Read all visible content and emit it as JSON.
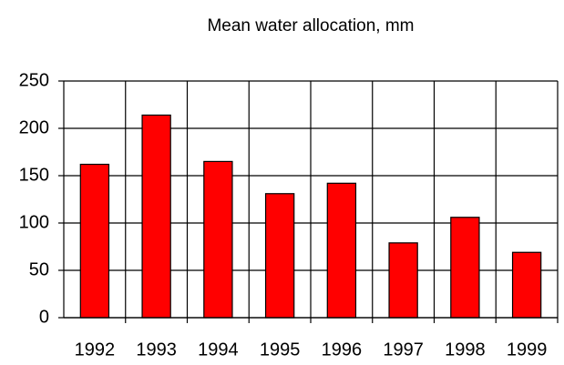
{
  "chart_data": {
    "type": "bar",
    "title": "Mean water allocation, mm",
    "categories": [
      "1992",
      "1993",
      "1994",
      "1995",
      "1996",
      "1997",
      "1998",
      "1999"
    ],
    "values": [
      162,
      214,
      165,
      131,
      142,
      79,
      106,
      69
    ],
    "color": "#ff0000",
    "ylim": [
      0,
      250
    ],
    "yticks": [
      0,
      50,
      100,
      150,
      200,
      250
    ],
    "grid": true
  }
}
